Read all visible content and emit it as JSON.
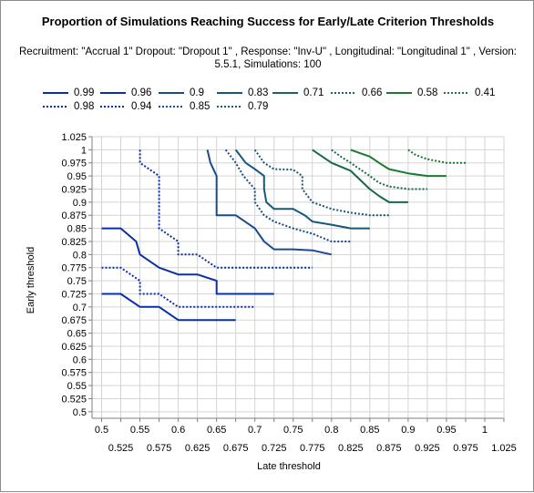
{
  "title": "Proportion of Simulations Reaching Success for Early/Late Criterion Thresholds",
  "subtitle": "Recruitment: \"Accrual 1\" Dropout: \"Dropout 1\" , Response: \"Inv-U\" , Longitudinal: \"Longitudinal 1\" , Version: 5.5.1, Simulations: 100",
  "chart_data": {
    "type": "line",
    "title": "Proportion of Simulations Reaching Success for Early/Late Criterion Thresholds",
    "xlabel": "Late threshold",
    "ylabel": "Early threshold",
    "xlim": [
      0.4875,
      1.025
    ],
    "ylim": [
      0.4875,
      1.025
    ],
    "x_ticks_row1": [
      "0.5",
      "0.55",
      "0.6",
      "0.65",
      "0.7",
      "0.75",
      "0.8",
      "0.85",
      "0.9",
      "0.95",
      "1"
    ],
    "x_ticks_row2": [
      "0.525",
      "0.575",
      "0.625",
      "0.675",
      "0.725",
      "0.775",
      "0.825",
      "0.875",
      "0.925",
      "0.975",
      "1.025"
    ],
    "y_ticks": [
      "0.5",
      "0.525",
      "0.55",
      "0.575",
      "0.6",
      "0.625",
      "0.65",
      "0.675",
      "0.7",
      "0.725",
      "0.75",
      "0.775",
      "0.8",
      "0.825",
      "0.85",
      "0.875",
      "0.9",
      "0.925",
      "0.95",
      "0.975",
      "1",
      "1.025"
    ],
    "grid": true,
    "legend_position": "top",
    "series": [
      {
        "name": "0.99",
        "color": "#0b2fa8",
        "dash": "solid",
        "points": [
          [
            0.5,
            0.725
          ],
          [
            0.525,
            0.725
          ],
          [
            0.55,
            0.7
          ],
          [
            0.575,
            0.7
          ],
          [
            0.6,
            0.675
          ],
          [
            0.675,
            0.675
          ]
        ]
      },
      {
        "name": "0.98",
        "color": "#0b2fa8",
        "dash": "dotted",
        "points": [
          [
            0.5,
            0.775
          ],
          [
            0.525,
            0.775
          ],
          [
            0.55,
            0.75
          ],
          [
            0.55,
            0.725
          ],
          [
            0.575,
            0.725
          ],
          [
            0.6,
            0.7
          ],
          [
            0.7,
            0.7
          ]
        ]
      },
      {
        "name": "0.96",
        "color": "#0b2fa8",
        "dash": "solid",
        "points": [
          [
            0.5,
            0.85
          ],
          [
            0.525,
            0.85
          ],
          [
            0.545,
            0.825
          ],
          [
            0.55,
            0.8
          ],
          [
            0.575,
            0.775
          ],
          [
            0.6,
            0.762
          ],
          [
            0.625,
            0.762
          ],
          [
            0.65,
            0.75
          ],
          [
            0.65,
            0.725
          ],
          [
            0.725,
            0.725
          ]
        ]
      },
      {
        "name": "0.94",
        "color": "#0b2fa8",
        "dash": "dotted",
        "points": [
          [
            0.55,
            1.0
          ],
          [
            0.55,
            0.975
          ],
          [
            0.575,
            0.95
          ],
          [
            0.575,
            0.85
          ],
          [
            0.6,
            0.825
          ],
          [
            0.6,
            0.8
          ],
          [
            0.625,
            0.8
          ],
          [
            0.65,
            0.775
          ],
          [
            0.775,
            0.775
          ]
        ]
      },
      {
        "name": "0.9",
        "color": "#1a4a8f",
        "dash": "solid",
        "points": [
          [
            0.638,
            1.0
          ],
          [
            0.642,
            0.975
          ],
          [
            0.65,
            0.95
          ],
          [
            0.65,
            0.875
          ],
          [
            0.675,
            0.875
          ],
          [
            0.7,
            0.85
          ],
          [
            0.712,
            0.825
          ],
          [
            0.725,
            0.81
          ],
          [
            0.75,
            0.81
          ],
          [
            0.775,
            0.808
          ],
          [
            0.8,
            0.8
          ]
        ]
      },
      {
        "name": "0.85",
        "color": "#1a4a8f",
        "dash": "dotted",
        "points": [
          [
            0.662,
            1.0
          ],
          [
            0.675,
            0.975
          ],
          [
            0.685,
            0.95
          ],
          [
            0.7,
            0.925
          ],
          [
            0.7,
            0.9
          ],
          [
            0.712,
            0.875
          ],
          [
            0.725,
            0.863
          ],
          [
            0.75,
            0.85
          ],
          [
            0.775,
            0.84
          ],
          [
            0.8,
            0.825
          ],
          [
            0.825,
            0.825
          ]
        ]
      },
      {
        "name": "0.83",
        "color": "#15587a",
        "dash": "solid",
        "points": [
          [
            0.675,
            1.0
          ],
          [
            0.688,
            0.975
          ],
          [
            0.7,
            0.963
          ],
          [
            0.712,
            0.95
          ],
          [
            0.712,
            0.925
          ],
          [
            0.715,
            0.9
          ],
          [
            0.725,
            0.887
          ],
          [
            0.75,
            0.887
          ],
          [
            0.765,
            0.875
          ],
          [
            0.775,
            0.863
          ],
          [
            0.8,
            0.857
          ],
          [
            0.825,
            0.85
          ],
          [
            0.85,
            0.85
          ]
        ]
      },
      {
        "name": "0.79",
        "color": "#15587a",
        "dash": "dotted",
        "points": [
          [
            0.7,
            1.0
          ],
          [
            0.712,
            0.975
          ],
          [
            0.725,
            0.963
          ],
          [
            0.75,
            0.962
          ],
          [
            0.762,
            0.95
          ],
          [
            0.762,
            0.925
          ],
          [
            0.775,
            0.9
          ],
          [
            0.8,
            0.887
          ],
          [
            0.825,
            0.88
          ],
          [
            0.85,
            0.875
          ],
          [
            0.875,
            0.875
          ]
        ]
      },
      {
        "name": "0.71",
        "color": "#17694a",
        "dash": "solid",
        "points": [
          [
            0.775,
            1.0
          ],
          [
            0.8,
            0.975
          ],
          [
            0.825,
            0.96
          ],
          [
            0.832,
            0.95
          ],
          [
            0.85,
            0.925
          ],
          [
            0.862,
            0.912
          ],
          [
            0.875,
            0.9
          ],
          [
            0.9,
            0.9
          ]
        ]
      },
      {
        "name": "0.66",
        "color": "#17694a",
        "dash": "dotted",
        "points": [
          [
            0.8,
            1.0
          ],
          [
            0.812,
            0.987
          ],
          [
            0.825,
            0.975
          ],
          [
            0.85,
            0.95
          ],
          [
            0.862,
            0.937
          ],
          [
            0.875,
            0.93
          ],
          [
            0.9,
            0.925
          ],
          [
            0.925,
            0.925
          ]
        ]
      },
      {
        "name": "0.58",
        "color": "#1a7a2e",
        "dash": "solid",
        "points": [
          [
            0.825,
            1.0
          ],
          [
            0.85,
            0.987
          ],
          [
            0.862,
            0.975
          ],
          [
            0.875,
            0.963
          ],
          [
            0.9,
            0.955
          ],
          [
            0.925,
            0.95
          ],
          [
            0.95,
            0.95
          ]
        ]
      },
      {
        "name": "0.41",
        "color": "#1a7a2e",
        "dash": "dotted",
        "points": [
          [
            0.9,
            1.0
          ],
          [
            0.91,
            0.99
          ],
          [
            0.925,
            0.982
          ],
          [
            0.95,
            0.975
          ],
          [
            0.975,
            0.975
          ]
        ]
      }
    ]
  }
}
